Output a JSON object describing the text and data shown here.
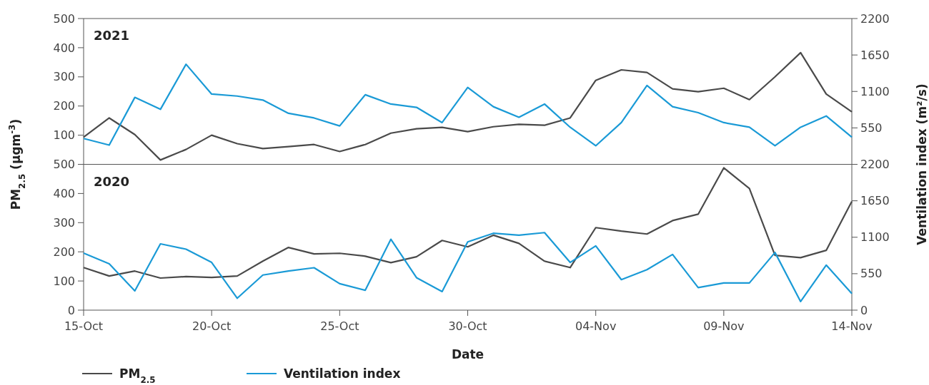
{
  "chart_data": [
    {
      "type": "line",
      "title": "2021",
      "tick_labels": "y",
      "x": [
        "--10-15",
        "--10-16",
        "--10-17",
        "--10-18",
        "--10-19",
        "--10-20",
        "--10-21",
        "--10-22",
        "--10-23",
        "--10-24",
        "--10-25",
        "--10-26",
        "--10-27",
        "--10-28",
        "--10-29",
        "--10-30",
        "--10-31",
        "--11-01",
        "--11-02",
        "--11-03",
        "--11-04",
        "--11-05",
        "--11-06",
        "--11-07",
        "--11-08",
        "--11-09",
        "--11-10",
        "--11-11",
        "--11-12",
        "--11-13",
        "--11-14"
      ],
      "xlim": [
        "--10-15",
        "--11-14"
      ],
      "ylim": [
        0,
        500
      ],
      "yticks": [
        {
          "value": 0,
          "label": null
        },
        100,
        200,
        300,
        400,
        500
      ],
      "y2lim": [
        0,
        2200
      ],
      "y2ticks": [
        {
          "value": 0,
          "label": null
        },
        550,
        1100,
        1650,
        2200
      ],
      "series": [
        {
          "color": "#4a4a4a",
          "values": [
            93,
            159,
            102,
            15,
            51,
            100,
            71,
            54,
            61,
            68,
            44,
            68,
            107,
            122,
            127,
            112,
            129,
            137,
            134,
            159,
            288,
            324,
            315,
            259,
            249,
            261,
            222,
            300,
            383,
            241,
            180
          ]
        },
        {
          "color": "#1a9ad6",
          "axis": "y2",
          "values": [
            390,
            290,
            1010,
            830,
            1510,
            1060,
            1030,
            970,
            770,
            700,
            580,
            1050,
            910,
            860,
            630,
            1160,
            870,
            710,
            910,
            560,
            280,
            630,
            1190,
            870,
            780,
            630,
            560,
            280,
            560,
            730,
            410
          ]
        }
      ]
    },
    {
      "type": "line",
      "title": "2020",
      "xlabel": "Date",
      "ylabel": "PM$_{2.5}$ (µgm$^{-3}$)",
      "y2label": "Ventilation index (m²/s)",
      "legend": "bottom",
      "x": [
        "--10-15",
        "--10-16",
        "--10-17",
        "--10-18",
        "--10-19",
        "--10-20",
        "--10-21",
        "--10-22",
        "--10-23",
        "--10-24",
        "--10-25",
        "--10-26",
        "--10-27",
        "--10-28",
        "--10-29",
        "--10-30",
        "--10-31",
        "--11-01",
        "--11-02",
        "--11-03",
        "--11-04",
        "--11-05",
        "--11-06",
        "--11-07",
        "--11-08",
        "--11-09",
        "--11-10",
        "--11-11",
        "--11-12",
        "--11-13",
        "--11-14"
      ],
      "xlim": [
        "--10-15",
        "--11-14"
      ],
      "xticks": [
        {
          "value": "--10-15",
          "label": "15-Oct"
        },
        {
          "value": "--10-20",
          "label": "20-Oct"
        },
        {
          "value": "--10-25",
          "label": "25-Oct"
        },
        {
          "value": "--10-30",
          "label": "30-Oct"
        },
        {
          "value": "--11-04",
          "label": "04-Nov"
        },
        {
          "value": "--11-09",
          "label": "09-Nov"
        },
        {
          "value": "--11-14",
          "label": "14-Nov"
        }
      ],
      "ylim": [
        0,
        500
      ],
      "yticks": [
        0,
        100,
        200,
        300,
        400,
        500
      ],
      "y2lim": [
        0,
        2200
      ],
      "y2ticks": [
        0,
        550,
        1100,
        1650,
        2200
      ],
      "series": [
        {
          "name": "PM$_{2.5}$",
          "color": "#4a4a4a",
          "values": [
            146,
            117,
            134,
            110,
            115,
            112,
            117,
            168,
            215,
            193,
            195,
            185,
            163,
            183,
            239,
            217,
            257,
            229,
            168,
            146,
            283,
            271,
            261,
            307,
            329,
            488,
            417,
            188,
            180,
            205,
            373
          ]
        },
        {
          "name": "Ventilation index",
          "color": "#1a9ad6",
          "axis": "y2",
          "values": [
            860,
            700,
            290,
            1000,
            920,
            720,
            180,
            530,
            590,
            640,
            400,
            300,
            1070,
            490,
            280,
            1030,
            1160,
            1130,
            1170,
            720,
            970,
            460,
            610,
            840,
            340,
            410,
            410,
            870,
            130,
            680,
            250
          ]
        }
      ]
    }
  ]
}
